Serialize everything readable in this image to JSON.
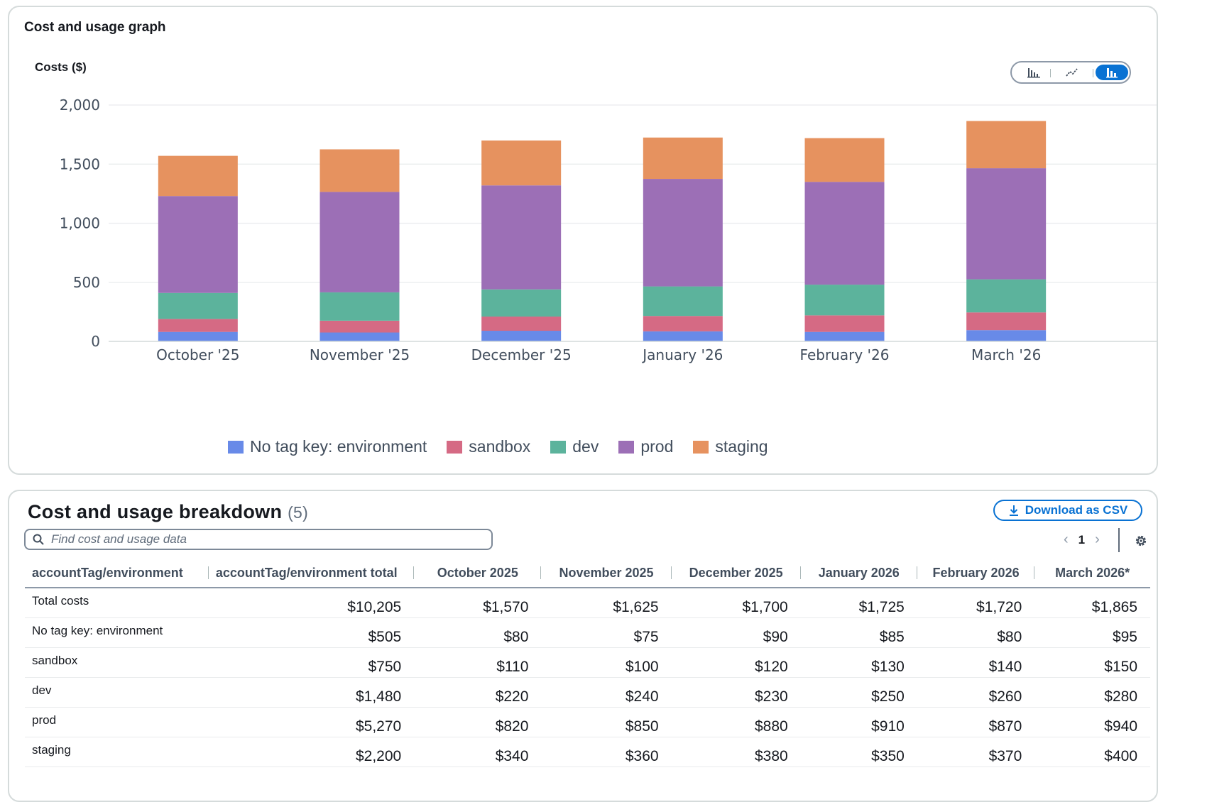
{
  "graph": {
    "title": "Cost and usage graph",
    "y_axis_title": "Costs ($)",
    "chart_type_options": [
      "bar-chart-icon",
      "line-chart-icon",
      "stacked-bar-chart-icon"
    ],
    "selected_chart_type": "stacked-bar-chart-icon"
  },
  "chart_data": {
    "type": "bar",
    "stacked": true,
    "categories": [
      "October '25",
      "November '25",
      "December '25",
      "January '26",
      "February '26",
      "March '26"
    ],
    "series": [
      {
        "name": "No tag key: environment",
        "color": "#688ae8",
        "values": [
          80,
          75,
          90,
          85,
          80,
          95
        ]
      },
      {
        "name": "sandbox",
        "color": "#d56a84",
        "values": [
          110,
          100,
          120,
          130,
          140,
          150
        ]
      },
      {
        "name": "dev",
        "color": "#5cb39c",
        "values": [
          220,
          240,
          230,
          250,
          260,
          280
        ]
      },
      {
        "name": "prod",
        "color": "#9c6fb6",
        "values": [
          820,
          850,
          880,
          910,
          870,
          940
        ]
      },
      {
        "name": "staging",
        "color": "#e6925f",
        "values": [
          340,
          360,
          380,
          350,
          370,
          400
        ]
      }
    ],
    "y_ticks": [
      "2,000",
      "1,500",
      "1,000",
      "500",
      "0"
    ],
    "ylim": [
      0,
      2000
    ],
    "grid": true,
    "legend_position": "bottom"
  },
  "breakdown": {
    "title": "Cost and usage breakdown",
    "count": "(5)",
    "download_label": "Download as CSV",
    "search_placeholder": "Find cost and usage data",
    "page": "1",
    "columns": [
      "accountTag/environment",
      "accountTag/environment total",
      "October 2025",
      "November 2025",
      "December 2025",
      "January 2026",
      "February 2026",
      "March 2026*"
    ],
    "rows": [
      [
        "Total costs",
        "$10,205",
        "$1,570",
        "$1,625",
        "$1,700",
        "$1,725",
        "$1,720",
        "$1,865"
      ],
      [
        "No tag key: environment",
        "$505",
        "$80",
        "$75",
        "$90",
        "$85",
        "$80",
        "$95"
      ],
      [
        "sandbox",
        "$750",
        "$110",
        "$100",
        "$120",
        "$130",
        "$140",
        "$150"
      ],
      [
        "dev",
        "$1,480",
        "$220",
        "$240",
        "$230",
        "$250",
        "$260",
        "$280"
      ],
      [
        "prod",
        "$5,270",
        "$820",
        "$850",
        "$880",
        "$910",
        "$870",
        "$940"
      ],
      [
        "staging",
        "$2,200",
        "$340",
        "$360",
        "$380",
        "$350",
        "$370",
        "$400"
      ]
    ]
  }
}
